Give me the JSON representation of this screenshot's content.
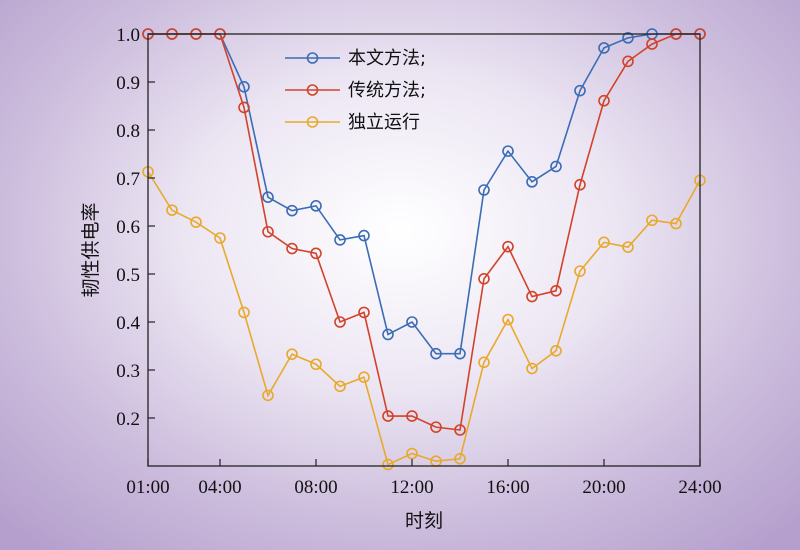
{
  "chart_data": {
    "type": "line",
    "xlabel": "时刻",
    "ylabel": "韧性供电率",
    "x": [
      1,
      2,
      3,
      4,
      5,
      6,
      7,
      8,
      9,
      10,
      11,
      12,
      13,
      14,
      15,
      16,
      17,
      18,
      19,
      20,
      21,
      22,
      23,
      24
    ],
    "xlim": [
      1,
      24
    ],
    "ylim": [
      0.1,
      1.0
    ],
    "x_ticks": [
      1,
      4,
      8,
      12,
      16,
      20,
      24
    ],
    "x_tick_labels": [
      "01:00",
      "04:00",
      "08:00",
      "12:00",
      "16:00",
      "20:00",
      "24:00"
    ],
    "y_ticks": [
      0.2,
      0.3,
      0.4,
      0.5,
      0.6,
      0.7,
      0.8,
      0.9,
      1.0
    ],
    "y_tick_labels": [
      "0.2",
      "0.3",
      "0.4",
      "0.5",
      "0.6",
      "0.7",
      "0.8",
      "0.9",
      "1.0"
    ],
    "grid": false,
    "legend_position": "top-center",
    "series": [
      {
        "name": "本文方法;",
        "color": "#3a6db5",
        "values": [
          1.0,
          1.0,
          1.0,
          1.0,
          0.89,
          0.66,
          0.632,
          0.642,
          0.571,
          0.58,
          0.374,
          0.4,
          0.334,
          0.334,
          0.675,
          0.756,
          0.692,
          0.724,
          0.882,
          0.971,
          0.992,
          1.0,
          1.0,
          1.0
        ]
      },
      {
        "name": "传统方法;",
        "color": "#d2432a",
        "values": [
          1.0,
          1.0,
          1.0,
          1.0,
          0.847,
          0.588,
          0.553,
          0.543,
          0.4,
          0.42,
          0.204,
          0.204,
          0.181,
          0.175,
          0.49,
          0.557,
          0.453,
          0.465,
          0.686,
          0.861,
          0.943,
          0.979,
          1.0,
          1.0
        ]
      },
      {
        "name": "独立运行",
        "color": "#e8a92c",
        "values": [
          0.713,
          0.633,
          0.608,
          0.575,
          0.42,
          0.247,
          0.333,
          0.312,
          0.266,
          0.285,
          0.103,
          0.126,
          0.11,
          0.115,
          0.316,
          0.405,
          0.303,
          0.34,
          0.506,
          0.566,
          0.556,
          0.612,
          0.605,
          0.695
        ]
      }
    ]
  }
}
